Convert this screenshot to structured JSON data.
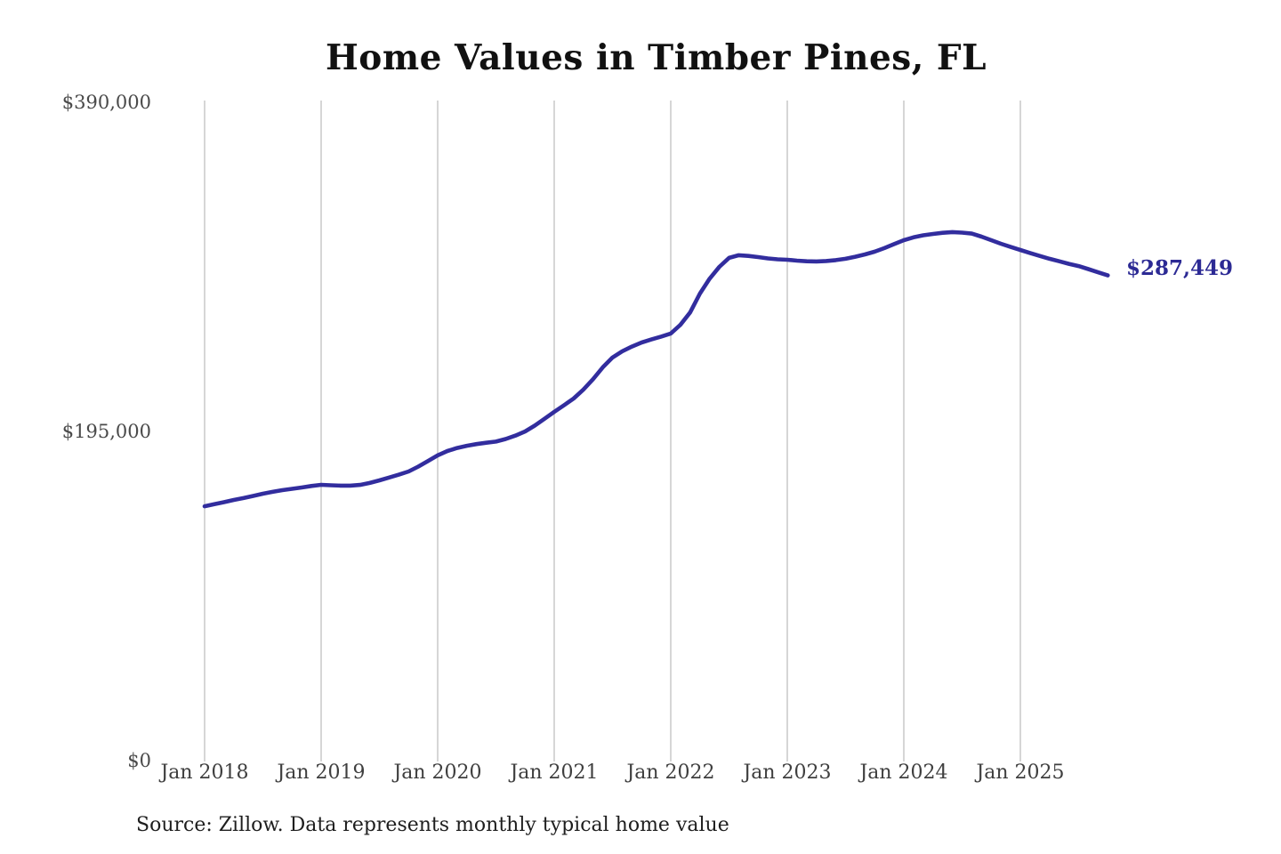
{
  "title": "Home Values in Timber Pines, FL",
  "source_note": "Source: Zillow. Data represents monthly typical home value",
  "end_label": "$287,449",
  "colors": {
    "background": "#ffffff",
    "line": "#322d9e",
    "end_label": "#2c2a94",
    "gridline": "#cbcbcb",
    "title_text": "#111111",
    "axis_text": "#454545",
    "source_text": "#1e1e1e"
  },
  "chart_data": {
    "type": "line",
    "title": "Home Values in Timber Pines, FL",
    "xlabel": "",
    "ylabel": "",
    "x_tick_labels": [
      "Jan 2018",
      "Jan 2019",
      "Jan 2020",
      "Jan 2021",
      "Jan 2022",
      "Jan 2023",
      "Jan 2024",
      "Jan 2025"
    ],
    "y_tick_labels": [
      "$390,000",
      "$195,000",
      "$0"
    ],
    "y_ticks": [
      390000,
      195000,
      0
    ],
    "ylim": [
      0,
      390000
    ],
    "grid": "vertical-only",
    "legend": "none",
    "annotation_final_value": 287449,
    "series": [
      {
        "name": "Monthly typical home value",
        "start_month": "2018-01",
        "end_month": "2025-10",
        "frequency": "monthly",
        "values": [
          150700,
          151900,
          153100,
          154400,
          155500,
          156800,
          158100,
          159200,
          160200,
          161000,
          161800,
          162700,
          163400,
          163100,
          162900,
          162900,
          163300,
          164500,
          166000,
          167700,
          169400,
          171300,
          174200,
          177500,
          180800,
          183400,
          185200,
          186500,
          187500,
          188300,
          189000,
          190500,
          192500,
          195000,
          198500,
          202500,
          206600,
          210500,
          214500,
          219800,
          226000,
          233000,
          238800,
          242500,
          245300,
          247700,
          249500,
          251200,
          253000,
          258200,
          265500,
          276700,
          285500,
          292500,
          297800,
          299400,
          299000,
          298300,
          297500,
          297000,
          296700,
          296200,
          295800,
          295700,
          296000,
          296500,
          297300,
          298500,
          299900,
          301500,
          303600,
          306000,
          308300,
          310000,
          311200,
          312000,
          312700,
          313100,
          312800,
          312200,
          310400,
          308300,
          306200,
          304300,
          302500,
          300700,
          299000,
          297300,
          295800,
          294300,
          293000,
          291200,
          289300,
          287449
        ]
      }
    ]
  }
}
